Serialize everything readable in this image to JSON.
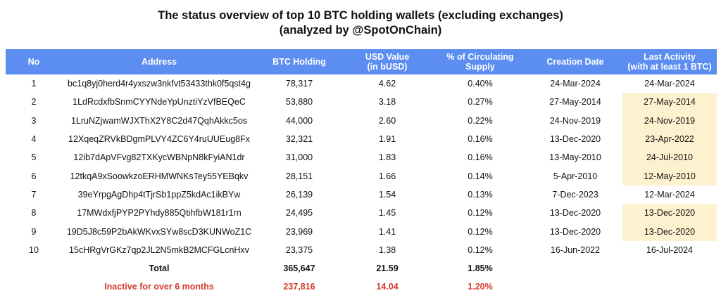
{
  "title": {
    "line1": "The status overview of top 10 BTC holding wallets (excluding exchanges)",
    "line2": "(analyzed by @SpotOnChain)"
  },
  "columns": [
    {
      "line1": "No",
      "line2": ""
    },
    {
      "line1": "Address",
      "line2": ""
    },
    {
      "line1": "BTC Holding",
      "line2": ""
    },
    {
      "line1": "USD Value",
      "line2": "(in bUSD)"
    },
    {
      "line1": "% of Circulating",
      "line2": "Supply"
    },
    {
      "line1": "Creation Date",
      "line2": ""
    },
    {
      "line1": "Last Activity",
      "line2": "(with at least 1 BTC)"
    }
  ],
  "rows": [
    {
      "no": "1",
      "address": "bc1q8yj0herd4r4yxszw3nkfvt53433thk0f5qst4g",
      "btc": "78,317",
      "usd": "4.62",
      "pct": "0.40%",
      "created": "24-Mar-2024",
      "last": "24-Mar-2024",
      "highlight": false
    },
    {
      "no": "2",
      "address": "1LdRcdxfbSnmCYYNdeYpUnztiYzVfBEQeC",
      "btc": "53,880",
      "usd": "3.18",
      "pct": "0.27%",
      "created": "27-May-2014",
      "last": "27-May-2014",
      "highlight": true
    },
    {
      "no": "3",
      "address": "1LruNZjwamWJXThX2Y8C2d47QqhAkkc5os",
      "btc": "44,000",
      "usd": "2.60",
      "pct": "0.22%",
      "created": "24-Nov-2019",
      "last": "24-Nov-2019",
      "highlight": true
    },
    {
      "no": "4",
      "address": "12XqeqZRVkBDgmPLVY4ZC6Y4ruUUEug8Fx",
      "btc": "32,321",
      "usd": "1.91",
      "pct": "0.16%",
      "created": "13-Dec-2020",
      "last": "23-Apr-2022",
      "highlight": true
    },
    {
      "no": "5",
      "address": "12ib7dApVFvg82TXKycWBNpN8kFyiAN1dr",
      "btc": "31,000",
      "usd": "1.83",
      "pct": "0.16%",
      "created": "13-May-2010",
      "last": "24-Jul-2010",
      "highlight": true
    },
    {
      "no": "6",
      "address": "12tkqA9xSoowkzoERHMWNKsTey55YEBqkv",
      "btc": "28,151",
      "usd": "1.66",
      "pct": "0.14%",
      "created": "5-Apr-2010",
      "last": "12-May-2010",
      "highlight": true
    },
    {
      "no": "7",
      "address": "39eYrpgAgDhp4tTjrSb1ppZ5kdAc1ikBYw",
      "btc": "26,139",
      "usd": "1.54",
      "pct": "0.13%",
      "created": "7-Dec-2023",
      "last": "12-Mar-2024",
      "highlight": false
    },
    {
      "no": "8",
      "address": "17MWdxfjPYP2PYhdy885QtihfbW181r1rn",
      "btc": "24,495",
      "usd": "1.45",
      "pct": "0.12%",
      "created": "13-Dec-2020",
      "last": "13-Dec-2020",
      "highlight": true
    },
    {
      "no": "9",
      "address": "19D5J8c59P2bAkWKvxSYw8scD3KUNWoZ1C",
      "btc": "23,969",
      "usd": "1.41",
      "pct": "0.12%",
      "created": "13-Dec-2020",
      "last": "13-Dec-2020",
      "highlight": true
    },
    {
      "no": "10",
      "address": "15cHRgVrGKz7qp2JL2N5mkB2MCFGLcnHxv",
      "btc": "23,375",
      "usd": "1.38",
      "pct": "0.12%",
      "created": "16-Jun-2022",
      "last": "16-Jul-2024",
      "highlight": false
    }
  ],
  "total": {
    "label": "Total",
    "btc": "365,647",
    "usd": "21.59",
    "pct": "1.85%"
  },
  "inactive": {
    "label": "Inactive for over 6 months",
    "btc": "237,816",
    "usd": "14.04",
    "pct": "1.20%"
  },
  "colors": {
    "header_bg": "#5b8ef0",
    "highlight_bg": "#fdf1cf",
    "inactive_text": "#d23b2a"
  }
}
